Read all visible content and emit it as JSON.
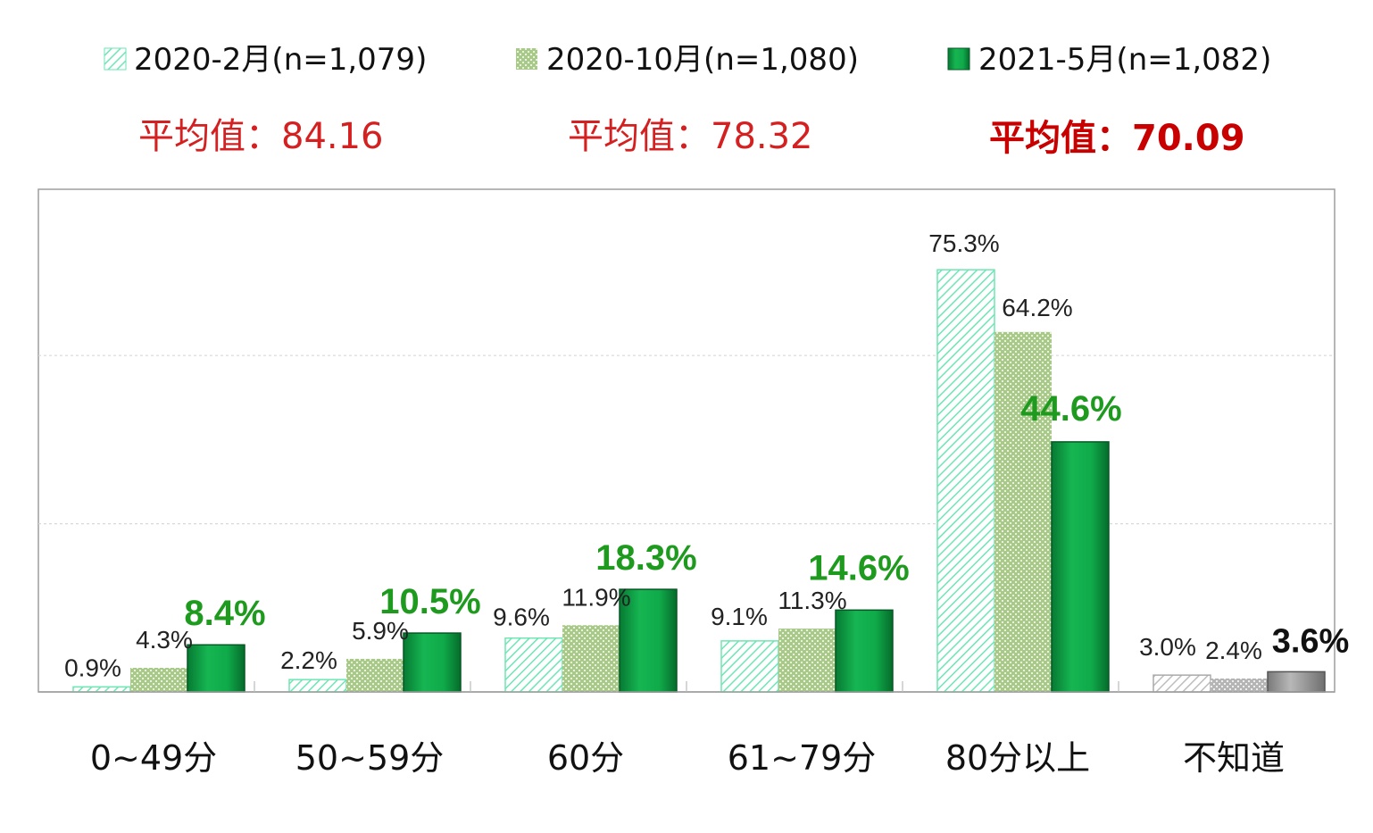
{
  "legend": [
    {
      "label": "2020-2月(n=1,079)",
      "style": "hatch"
    },
    {
      "label": "2020-10月(n=1,080)",
      "style": "dots"
    },
    {
      "label": "2021-5月(n=1,082)",
      "style": "solid"
    }
  ],
  "averages": [
    {
      "text": "平均值：84.16"
    },
    {
      "text": "平均值：78.32"
    },
    {
      "text": "平均值：70.09"
    }
  ],
  "colors": {
    "hatch_stroke": "#6ee6b4",
    "dots_fill": "#a9c98a",
    "solid_fill": "#0faa4a",
    "solid_dark": "#067a32",
    "grey_light": "#bdbdbd",
    "grey_solid": "#9a9a9a",
    "average_red": "#d42020",
    "highlight_green": "#1e9a1e"
  },
  "chart_data": {
    "type": "bar",
    "categories": [
      "0~49分",
      "50~59分",
      "60分",
      "61~79分",
      "80分以上",
      "不知道"
    ],
    "series": [
      {
        "name": "2020-2月(n=1,079)",
        "values": [
          0.9,
          2.2,
          9.6,
          9.1,
          75.3,
          3.0
        ],
        "labels": [
          "0.9%",
          "2.2%",
          "9.6%",
          "9.1%",
          "75.3%",
          "3.0%"
        ]
      },
      {
        "name": "2020-10月(n=1,080)",
        "values": [
          4.3,
          5.9,
          11.9,
          11.3,
          64.2,
          2.4
        ],
        "labels": [
          "4.3%",
          "5.9%",
          "11.9%",
          "11.3%",
          "64.2%",
          "2.4%"
        ]
      },
      {
        "name": "2021-5月(n=1,082)",
        "values": [
          8.4,
          10.5,
          18.3,
          14.6,
          44.6,
          3.6
        ],
        "labels": [
          "8.4%",
          "10.5%",
          "18.3%",
          "14.6%",
          "44.6%",
          "3.6%"
        ]
      }
    ],
    "ylim": [
      0,
      90
    ],
    "grid": true,
    "legend_position": "top"
  }
}
